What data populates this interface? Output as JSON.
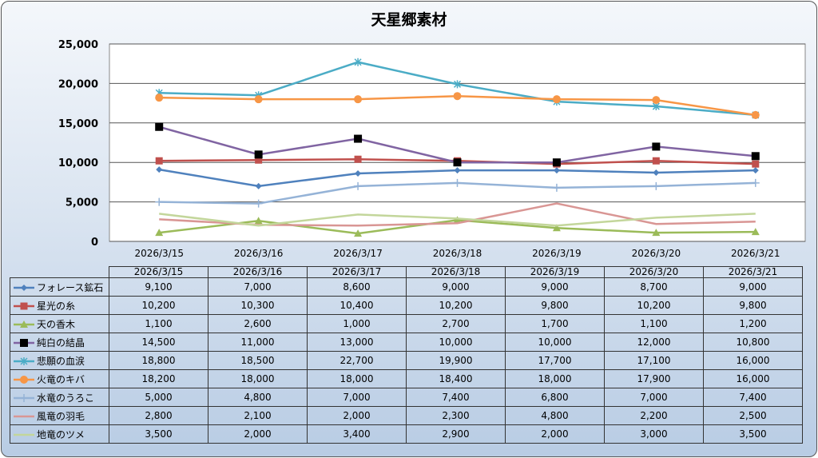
{
  "chart_data": {
    "type": "line",
    "title": "天星郷素材",
    "categories": [
      "2026/3/15",
      "2026/3/16",
      "2026/3/17",
      "2026/3/18",
      "2026/3/19",
      "2026/3/20",
      "2026/3/21"
    ],
    "ylim": [
      0,
      25000
    ],
    "yticks": [
      "0",
      "5,000",
      "10,000",
      "15,000",
      "20,000",
      "25,000"
    ],
    "grid": true,
    "legend": "data-table-bottom",
    "series": [
      {
        "name": "フォレース鉱石",
        "color": "#4f81bd",
        "marker": "diamond",
        "values": [
          9100,
          7000,
          8600,
          9000,
          9000,
          8700,
          9000
        ],
        "labels": [
          "9,100",
          "7,000",
          "8,600",
          "9,000",
          "9,000",
          "8,700",
          "9,000"
        ]
      },
      {
        "name": "星光の糸",
        "color": "#c0504d",
        "marker": "square",
        "values": [
          10200,
          10300,
          10400,
          10200,
          9800,
          10200,
          9800
        ],
        "labels": [
          "10,200",
          "10,300",
          "10,400",
          "10,200",
          "9,800",
          "10,200",
          "9,800"
        ]
      },
      {
        "name": "天の香木",
        "color": "#9bbb59",
        "marker": "triangle",
        "values": [
          1100,
          2600,
          1000,
          2700,
          1700,
          1100,
          1200
        ],
        "labels": [
          "1,100",
          "2,600",
          "1,000",
          "2,700",
          "1,700",
          "1,100",
          "1,200"
        ]
      },
      {
        "name": "純白の結晶",
        "color": "#8064a2",
        "marker": "blacksquare",
        "values": [
          14500,
          11000,
          13000,
          10000,
          10000,
          12000,
          10800
        ],
        "labels": [
          "14,500",
          "11,000",
          "13,000",
          "10,000",
          "10,000",
          "12,000",
          "10,800"
        ]
      },
      {
        "name": "悲願の血涙",
        "color": "#4bacc6",
        "marker": "star",
        "values": [
          18800,
          18500,
          22700,
          19900,
          17700,
          17100,
          16000
        ],
        "labels": [
          "18,800",
          "18,500",
          "22,700",
          "19,900",
          "17,700",
          "17,100",
          "16,000"
        ]
      },
      {
        "name": "火竜のキバ",
        "color": "#f79646",
        "marker": "circle",
        "values": [
          18200,
          18000,
          18000,
          18400,
          18000,
          17900,
          16000
        ],
        "labels": [
          "18,200",
          "18,000",
          "18,000",
          "18,400",
          "18,000",
          "17,900",
          "16,000"
        ]
      },
      {
        "name": "水竜のうろこ",
        "color": "#95b3d7",
        "marker": "plus",
        "values": [
          5000,
          4800,
          7000,
          7400,
          6800,
          7000,
          7400
        ],
        "labels": [
          "5,000",
          "4,800",
          "7,000",
          "7,400",
          "6,800",
          "7,000",
          "7,400"
        ]
      },
      {
        "name": "風竜の羽毛",
        "color": "#d99694",
        "marker": "none",
        "values": [
          2800,
          2100,
          2000,
          2300,
          4800,
          2200,
          2500
        ],
        "labels": [
          "2,800",
          "2,100",
          "2,000",
          "2,300",
          "4,800",
          "2,200",
          "2,500"
        ]
      },
      {
        "name": "地竜のツメ",
        "color": "#c3d69b",
        "marker": "none",
        "values": [
          3500,
          2000,
          3400,
          2900,
          2000,
          3000,
          3500
        ],
        "labels": [
          "3,500",
          "2,000",
          "3,400",
          "2,900",
          "2,000",
          "3,000",
          "3,500"
        ]
      }
    ]
  }
}
